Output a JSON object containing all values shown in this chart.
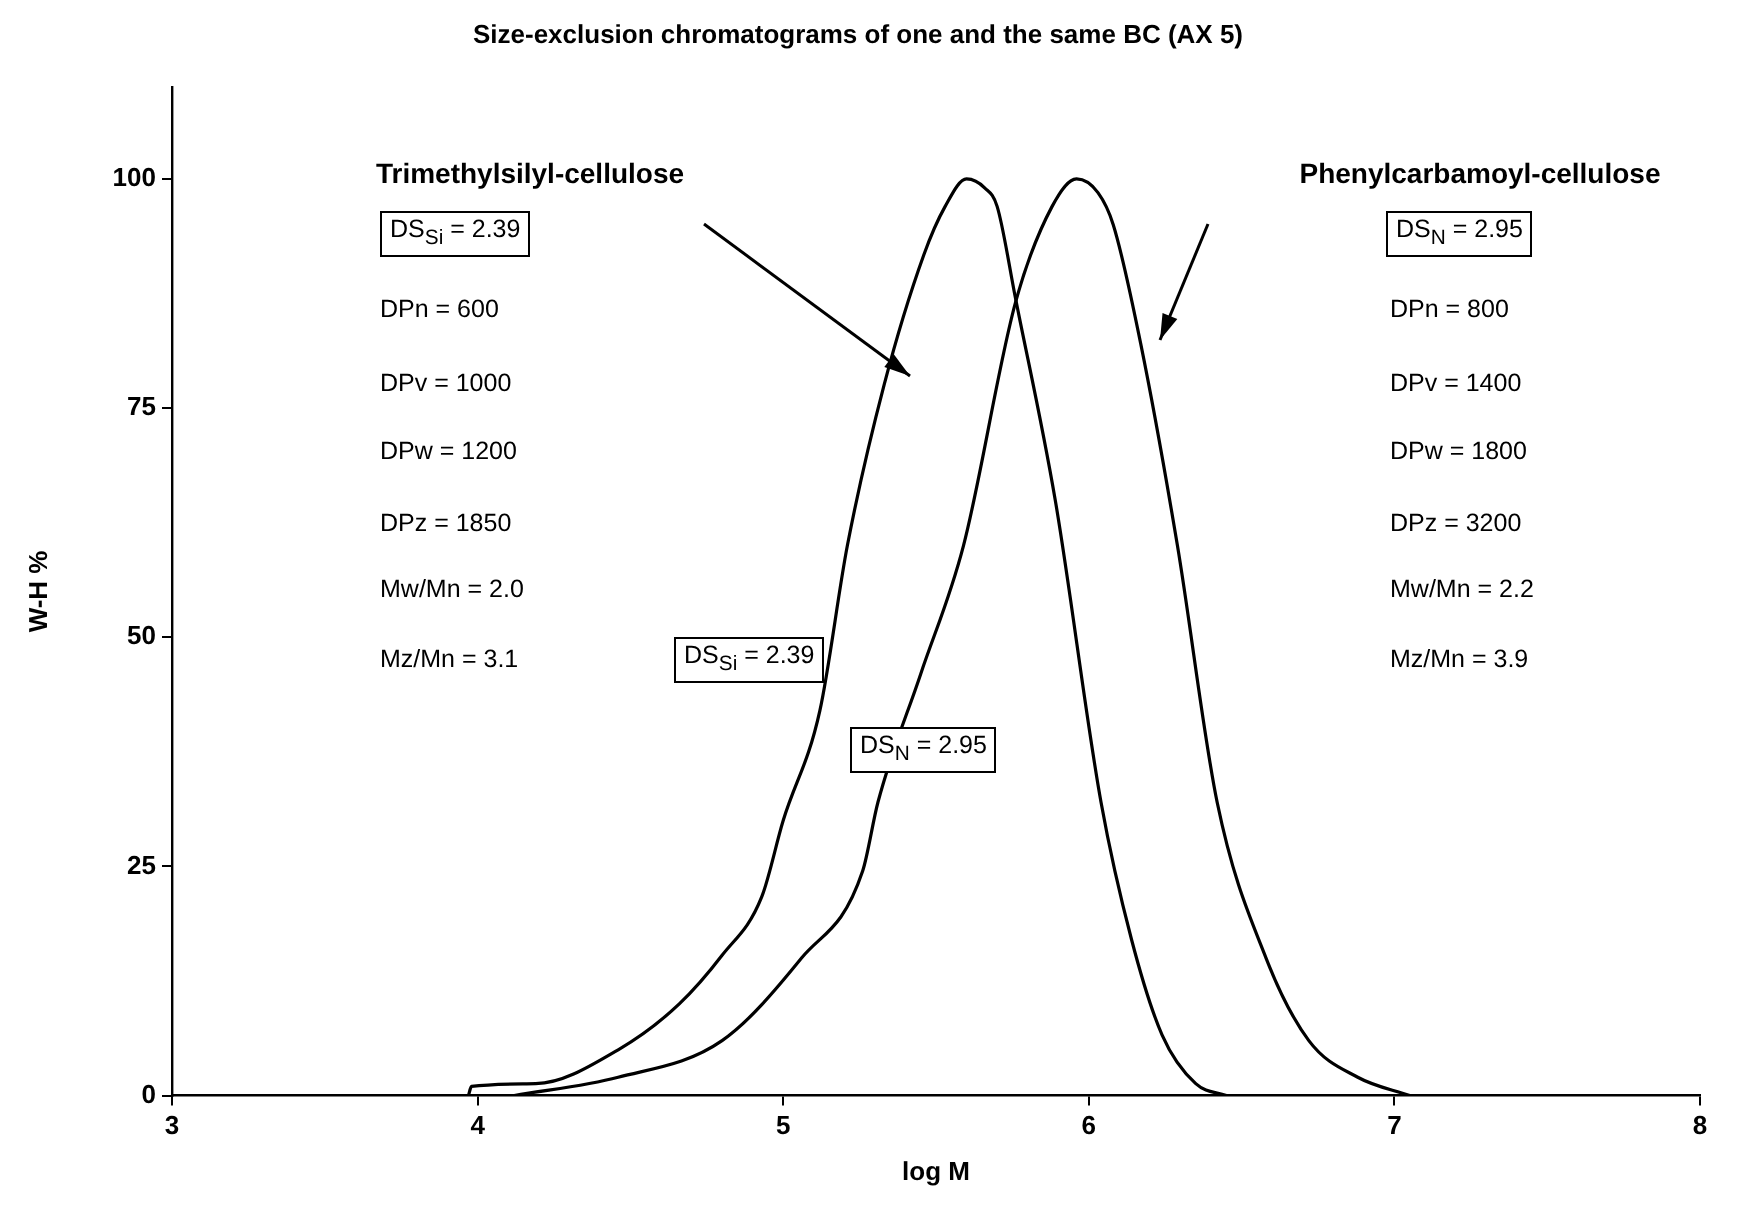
{
  "chart_data": {
    "type": "line",
    "title": "Size-exclusion chromatograms of one and the same BC (AX 5)",
    "xlabel": "log M",
    "ylabel": "W-H %",
    "xlim": [
      3,
      8
    ],
    "xticks": [
      3,
      4,
      5,
      6,
      7,
      8
    ],
    "ylim": [
      0,
      110
    ],
    "yticks": [
      0,
      25,
      50,
      75,
      100
    ],
    "series": [
      {
        "color": "#000000",
        "x": [
          3.97,
          3.98,
          4.19,
          4.46,
          4.66,
          4.8,
          4.93,
          5.0,
          5.12,
          5.21,
          5.33,
          5.46,
          5.53,
          5.6,
          5.66,
          5.7,
          5.76,
          5.89,
          6.04,
          6.14,
          6.24,
          6.35,
          6.45
        ],
        "values": [
          0,
          1,
          1.3,
          5,
          10,
          15.3,
          21.7,
          30,
          42,
          60,
          77.5,
          91.7,
          97,
          100,
          99,
          97,
          87,
          65,
          32,
          17,
          6.6,
          1.3,
          0
        ]
      },
      {
        "color": "#000000",
        "x": [
          4.12,
          4.46,
          4.8,
          5.06,
          5.26,
          5.31,
          5.45,
          5.59,
          5.76,
          5.88,
          5.96,
          6.03,
          6.08,
          6.17,
          6.29,
          6.42,
          6.58,
          6.72,
          6.88,
          7.05
        ],
        "values": [
          0,
          2,
          6,
          15,
          24.5,
          32,
          46,
          60,
          86.5,
          97,
          100,
          98.5,
          95,
          82,
          60,
          32,
          15,
          6,
          2,
          0
        ]
      }
    ],
    "annotations": [
      "Trimethylsilyl-cellulose",
      "Phenylcarbamoyl-cellulose",
      "DS$_{Si}$ = 2.39",
      "DPn = 600",
      "DPv = 1000",
      "DPw = 1200",
      "DPz = 1850",
      "Mw/Mn = 2.0",
      "Mz/Mn = 3.1",
      "DS$_{N}$ = 2.95",
      "DPn = 800",
      "DPv = 1400",
      "DPw = 1800",
      "DPz = 3200",
      "Mw/Mn = 2.2",
      "Mz/Mn = 3.9",
      "DS$_{Si}$ = 2.39",
      "DS$_{N}$ = 2.95"
    ]
  }
}
